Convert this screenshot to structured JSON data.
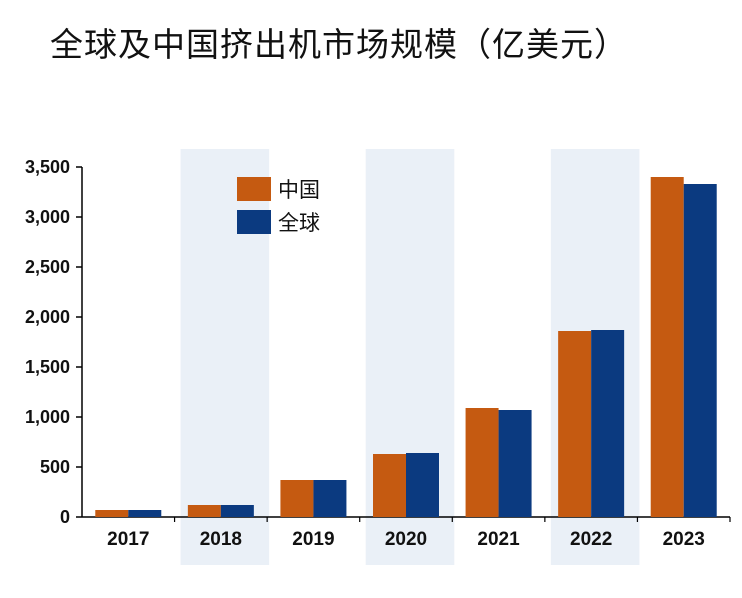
{
  "chart_data": {
    "type": "bar",
    "title": "全球及中国挤出机市场规模（亿美元）",
    "categories": [
      "2017",
      "2018",
      "2019",
      "2020",
      "2021",
      "2022",
      "2023"
    ],
    "series": [
      {
        "name": "中国",
        "color": "#C55A11",
        "values": [
          70,
          120,
          370,
          630,
          1090,
          1860,
          3400
        ]
      },
      {
        "name": "全球",
        "color": "#0B3A80",
        "values": [
          70,
          120,
          370,
          640,
          1070,
          1870,
          3330
        ]
      }
    ],
    "y_ticks": [
      "0",
      "500",
      "1,000",
      "1,500",
      "2,000",
      "2,500",
      "3,000",
      "3,500"
    ],
    "ylim": [
      0,
      3500
    ],
    "shaded_categories": [
      "2018",
      "2020",
      "2022"
    ],
    "shade_color": "#EAF0F7",
    "grid": false,
    "legend_position": "top-left"
  }
}
